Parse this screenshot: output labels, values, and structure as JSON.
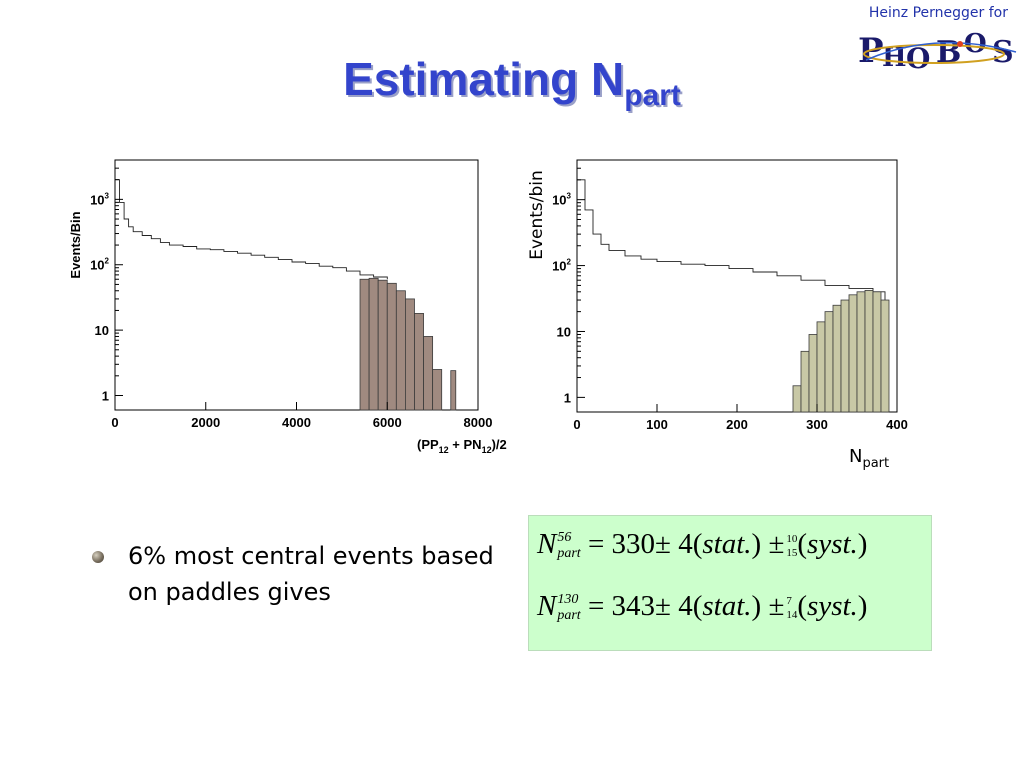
{
  "header": {
    "credit": "Heinz Pernegger for",
    "logo_text": "PHOBOS"
  },
  "title": {
    "main": "Estimating N",
    "sub": "part"
  },
  "chart_data": [
    {
      "type": "histogram",
      "ylabel": "Events/Bin",
      "xlabel": "(PP",
      "xlabel_sub1": "12",
      "xlabel_mid": " + PN",
      "xlabel_sub2": "12",
      "xlabel_end": ")/2",
      "xlim": [
        0,
        8000
      ],
      "ylog": true,
      "x_ticks": [
        "0",
        "2000",
        "4000",
        "6000",
        "8000"
      ],
      "y_ticks": [
        {
          "value": 1,
          "label": "1"
        },
        {
          "value": 10,
          "label": "10"
        },
        {
          "value": 100,
          "label": "10",
          "exp": "2"
        },
        {
          "value": 1000,
          "label": "10",
          "exp": "3"
        }
      ],
      "outline_x": [
        0,
        100,
        200,
        300,
        400,
        600,
        800,
        1000,
        1200,
        1500,
        1800,
        2100,
        2400,
        2700,
        3000,
        3300,
        3600,
        3900,
        4200,
        4500,
        4800,
        5100,
        5400,
        5700,
        6000
      ],
      "outline_y": [
        2000,
        900,
        500,
        380,
        320,
        280,
        250,
        220,
        200,
        190,
        175,
        170,
        160,
        150,
        140,
        130,
        120,
        110,
        105,
        95,
        90,
        80,
        70,
        65,
        60
      ],
      "filled_bins": [
        {
          "x": 5400,
          "y": 60
        },
        {
          "x": 5600,
          "y": 62
        },
        {
          "x": 5800,
          "y": 58
        },
        {
          "x": 6000,
          "y": 52
        },
        {
          "x": 6200,
          "y": 40
        },
        {
          "x": 6400,
          "y": 30
        },
        {
          "x": 6600,
          "y": 18
        },
        {
          "x": 6800,
          "y": 8
        },
        {
          "x": 7000,
          "y": 2.5
        }
      ],
      "extra_bar": {
        "x": 7400,
        "y": 2.4
      },
      "fill_color": "#a08a80"
    },
    {
      "type": "histogram",
      "ylabel": "Events/bin",
      "xlabel": "N",
      "xlabel_sub": "part",
      "xlim": [
        0,
        400
      ],
      "ylog": true,
      "x_ticks": [
        "0",
        "100",
        "200",
        "300",
        "400"
      ],
      "y_ticks": [
        {
          "value": 1,
          "label": "1"
        },
        {
          "value": 10,
          "label": "10"
        },
        {
          "value": 100,
          "label": "10",
          "exp": "2"
        },
        {
          "value": 1000,
          "label": "10",
          "exp": "3"
        }
      ],
      "outline_x": [
        0,
        10,
        20,
        30,
        40,
        60,
        80,
        100,
        130,
        160,
        190,
        220,
        250,
        280,
        310,
        340,
        370,
        385
      ],
      "outline_y": [
        2000,
        700,
        300,
        210,
        170,
        140,
        125,
        115,
        105,
        100,
        90,
        80,
        70,
        60,
        50,
        45,
        40,
        30
      ],
      "filled_bins": [
        {
          "x": 270,
          "y": 1.5
        },
        {
          "x": 280,
          "y": 5
        },
        {
          "x": 290,
          "y": 9
        },
        {
          "x": 300,
          "y": 14
        },
        {
          "x": 310,
          "y": 20
        },
        {
          "x": 320,
          "y": 25
        },
        {
          "x": 330,
          "y": 30
        },
        {
          "x": 340,
          "y": 36
        },
        {
          "x": 350,
          "y": 40
        },
        {
          "x": 360,
          "y": 42
        },
        {
          "x": 370,
          "y": 40
        },
        {
          "x": 380,
          "y": 30
        }
      ],
      "fill_color": "#c8c8a6"
    }
  ],
  "bullet": {
    "text": "6% most central events based on paddles gives"
  },
  "formulas": [
    {
      "sym": "N",
      "sup": "56",
      "sub": "part",
      "eq": "= 330",
      "pm": "± 4(",
      "stat": "stat.",
      "close": ") ±",
      "up": "10",
      "down": "15",
      "syst_open": "(",
      "syst": "syst.",
      "syst_close": ")"
    },
    {
      "sym": "N",
      "sup": "130",
      "sub": "part",
      "eq": "= 343",
      "pm": "± 4(",
      "stat": "stat.",
      "close": ") ±",
      "up": "7",
      "down": "14",
      "syst_open": "(",
      "syst": "syst.",
      "syst_close": ")"
    }
  ]
}
